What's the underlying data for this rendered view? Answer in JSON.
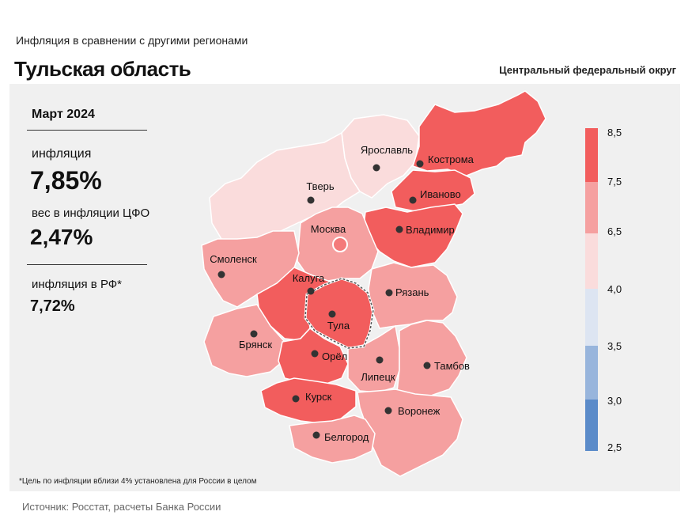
{
  "header": {
    "subtitle": "Инфляция  в сравнении  с другими  регионами",
    "region": "Тульская область",
    "district": "Центральный федеральный округ"
  },
  "panel": {
    "period": "Март 2024",
    "inflation_label": "инфляция",
    "inflation_value": "7,85%",
    "weight_label": "вес в инфляции  ЦФО",
    "weight_value": "2,47%",
    "rf_label": "инфляция  в РФ*",
    "rf_value": "7,72%",
    "footnote": "*Цель по инфляции вблизи 4% установлена для России в целом"
  },
  "source": "Источник: Росстат, расчеты Банка России",
  "legend": {
    "ticks": [
      "8,5",
      "7,5",
      "6,5",
      "4,0",
      "3,5",
      "3,0",
      "2,5"
    ],
    "colors": [
      "#f25d5d",
      "#f5a0a0",
      "#fadcdc",
      "#dde5f2",
      "#98b5dc",
      "#5b8bc9"
    ]
  },
  "map": {
    "highlight": "Тула",
    "marker_color": "#333333",
    "moscow_marker_color": "#f47a7a",
    "regions": [
      {
        "name": "Ярославль",
        "color": "#fadcdc"
      },
      {
        "name": "Кострома",
        "color": "#f25d5d"
      },
      {
        "name": "Тверь",
        "color": "#fadcdc"
      },
      {
        "name": "Иваново",
        "color": "#f25d5d"
      },
      {
        "name": "Владимир",
        "color": "#f25d5d"
      },
      {
        "name": "Москва",
        "color": "#f5a0a0"
      },
      {
        "name": "Смоленск",
        "color": "#f5a0a0"
      },
      {
        "name": "Калуга",
        "color": "#f25d5d"
      },
      {
        "name": "Тула",
        "color": "#f25d5d"
      },
      {
        "name": "Рязань",
        "color": "#f5a0a0"
      },
      {
        "name": "Брянск",
        "color": "#f5a0a0"
      },
      {
        "name": "Орёл",
        "color": "#f25d5d"
      },
      {
        "name": "Липецк",
        "color": "#f5a0a0"
      },
      {
        "name": "Тамбов",
        "color": "#f5a0a0"
      },
      {
        "name": "Курск",
        "color": "#f25d5d"
      },
      {
        "name": "Воронеж",
        "color": "#f5a0a0"
      },
      {
        "name": "Белгород",
        "color": "#f5a0a0"
      }
    ]
  }
}
